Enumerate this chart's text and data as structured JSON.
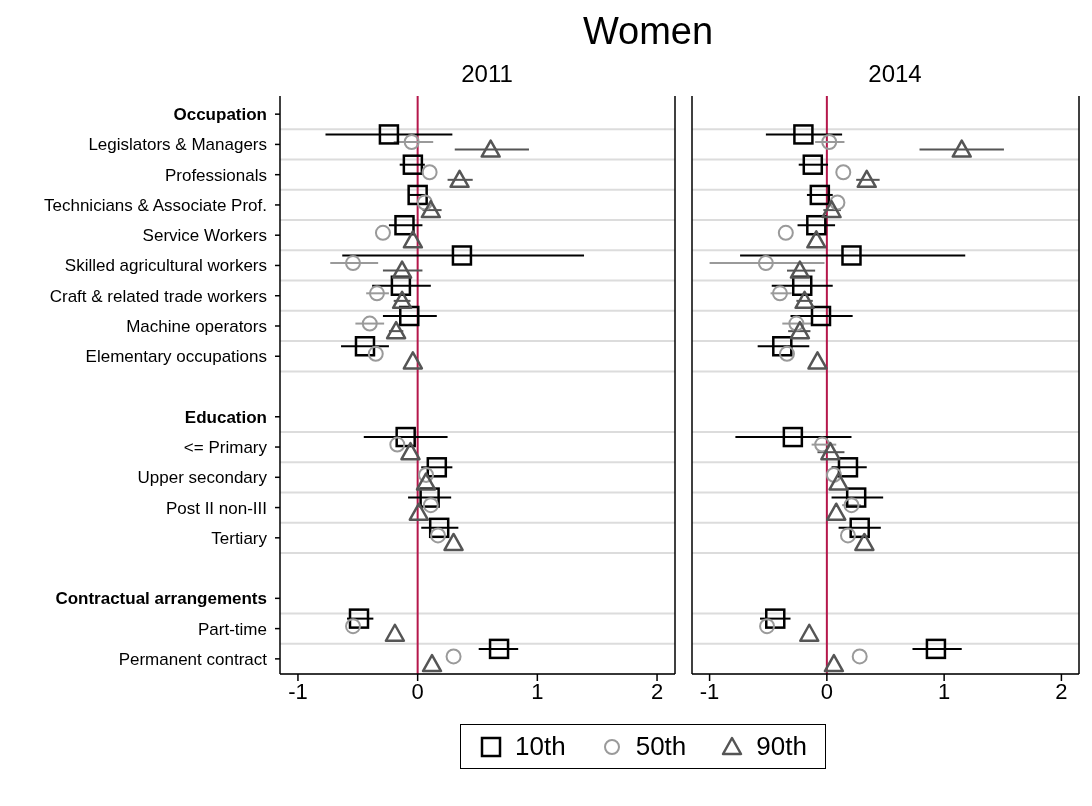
{
  "chart_data": [
    {
      "type": "scatter",
      "title": "Women",
      "subtitle": "2011",
      "orientation": "horizontal",
      "grid": "y",
      "legend": "bottom",
      "categories": [
        "Occupation",
        "Legislators & Managers",
        "Professionals",
        "Technicians & Associate Prof.",
        "Service Workers",
        "Skilled agricultural workers",
        "Craft & related trade workers",
        "Machine operators",
        "Elementary occupations",
        null,
        "Education",
        "<= Primary",
        "Upper secondary",
        "Post II non-III",
        "Tertiary",
        null,
        "Contractual arrangements",
        "Part-time",
        "Permanent contract"
      ],
      "xlim": [
        -1.15,
        2.15
      ],
      "xticks": [
        -1,
        0,
        1,
        2
      ],
      "ref_lines": [
        {
          "axis": "x",
          "value": 0,
          "color": "#b5174b"
        }
      ],
      "series": [
        {
          "name": "10th",
          "color": "#000000",
          "marker": "square",
          "values": [
            null,
            -0.24,
            -0.04,
            0.0,
            -0.11,
            0.37,
            -0.14,
            -0.07,
            -0.44,
            null,
            null,
            -0.1,
            0.16,
            0.1,
            0.18,
            null,
            null,
            -0.49,
            0.68
          ],
          "errors": [
            null,
            [
              -0.77,
              0.29
            ],
            [
              -0.15,
              0.06
            ],
            [
              -0.07,
              0.06
            ],
            [
              -0.24,
              0.04
            ],
            [
              -0.63,
              1.39
            ],
            [
              -0.38,
              0.11
            ],
            [
              -0.29,
              0.16
            ],
            [
              -0.64,
              -0.24
            ],
            null,
            null,
            [
              -0.45,
              0.25
            ],
            [
              0.03,
              0.29
            ],
            [
              -0.08,
              0.28
            ],
            [
              0.03,
              0.34
            ],
            null,
            null,
            [
              -0.59,
              -0.37
            ],
            [
              0.51,
              0.84
            ]
          ]
        },
        {
          "name": "50th",
          "color": "#9a9a9a",
          "marker": "circle",
          "values": [
            null,
            -0.05,
            0.1,
            0.06,
            -0.29,
            -0.54,
            -0.34,
            -0.4,
            -0.35,
            null,
            null,
            -0.17,
            0.07,
            0.11,
            0.17,
            null,
            null,
            -0.54,
            0.3
          ],
          "errors": [
            null,
            [
              -0.2,
              0.13
            ],
            null,
            null,
            null,
            [
              -0.73,
              -0.33
            ],
            [
              -0.43,
              -0.24
            ],
            [
              -0.52,
              -0.28
            ],
            null,
            null,
            null,
            null,
            null,
            null,
            null,
            null,
            null,
            null,
            null
          ]
        },
        {
          "name": "90th",
          "color": "#555555",
          "marker": "triangle",
          "values": [
            null,
            0.61,
            0.35,
            0.11,
            -0.04,
            -0.13,
            -0.13,
            -0.18,
            -0.04,
            null,
            null,
            -0.06,
            0.07,
            0.01,
            0.3,
            null,
            null,
            -0.19,
            0.12
          ],
          "errors": [
            null,
            [
              0.31,
              0.93
            ],
            [
              0.25,
              0.46
            ],
            [
              0.04,
              0.2
            ],
            null,
            [
              -0.29,
              0.04
            ],
            [
              -0.2,
              -0.06
            ],
            [
              -0.24,
              -0.12
            ],
            null,
            null,
            null,
            null,
            null,
            null,
            null,
            null,
            null,
            null,
            null
          ]
        }
      ]
    },
    {
      "type": "scatter",
      "subtitle": "2014",
      "orientation": "horizontal",
      "grid": "y",
      "tick_labels": "x",
      "xlim": [
        -1.15,
        2.15
      ],
      "xticks": [
        -1,
        0,
        1,
        2
      ],
      "ref_lines": [
        {
          "axis": "x",
          "value": 0,
          "color": "#b5174b"
        }
      ],
      "series": [
        {
          "color": "#000000",
          "marker": "square",
          "values": [
            null,
            -0.2,
            -0.12,
            -0.06,
            -0.09,
            0.21,
            -0.21,
            -0.05,
            -0.38,
            null,
            null,
            -0.29,
            0.18,
            0.25,
            0.28,
            null,
            null,
            -0.44,
            0.93
          ],
          "errors": [
            null,
            [
              -0.52,
              0.13
            ],
            [
              -0.24,
              0.01
            ],
            [
              -0.17,
              0.05
            ],
            [
              -0.25,
              0.07
            ],
            [
              -0.74,
              1.18
            ],
            [
              -0.47,
              0.05
            ],
            [
              -0.31,
              0.22
            ],
            [
              -0.59,
              -0.15
            ],
            null,
            null,
            [
              -0.78,
              0.21
            ],
            [
              0.04,
              0.34
            ],
            [
              0.04,
              0.48
            ],
            [
              0.1,
              0.46
            ],
            null,
            null,
            [
              -0.57,
              -0.31
            ],
            [
              0.73,
              1.15
            ]
          ]
        },
        {
          "color": "#9a9a9a",
          "marker": "circle",
          "values": [
            null,
            0.02,
            0.14,
            0.09,
            -0.35,
            -0.52,
            -0.4,
            -0.26,
            -0.34,
            null,
            null,
            -0.04,
            0.06,
            0.21,
            0.18,
            null,
            null,
            -0.51,
            0.28
          ],
          "errors": [
            null,
            [
              -0.1,
              0.15
            ],
            null,
            null,
            null,
            [
              -1.0,
              -0.02
            ],
            [
              -0.48,
              -0.3
            ],
            [
              -0.38,
              -0.13
            ],
            null,
            null,
            null,
            [
              -0.13,
              0.08
            ],
            null,
            [
              0.13,
              0.29
            ],
            null,
            null,
            null,
            null,
            null
          ]
        },
        {
          "color": "#555555",
          "marker": "triangle",
          "values": [
            null,
            1.15,
            0.34,
            0.04,
            -0.09,
            -0.23,
            -0.19,
            -0.23,
            -0.08,
            null,
            null,
            0.03,
            0.1,
            0.08,
            0.32,
            null,
            null,
            -0.15,
            0.06
          ],
          "errors": [
            null,
            [
              0.79,
              1.51
            ],
            [
              0.25,
              0.45
            ],
            [
              -0.03,
              0.12
            ],
            null,
            [
              -0.34,
              -0.1
            ],
            [
              -0.26,
              -0.12
            ],
            [
              -0.33,
              -0.14
            ],
            null,
            null,
            null,
            [
              -0.08,
              0.15
            ],
            null,
            null,
            null,
            null,
            null,
            null,
            null
          ]
        }
      ]
    }
  ]
}
